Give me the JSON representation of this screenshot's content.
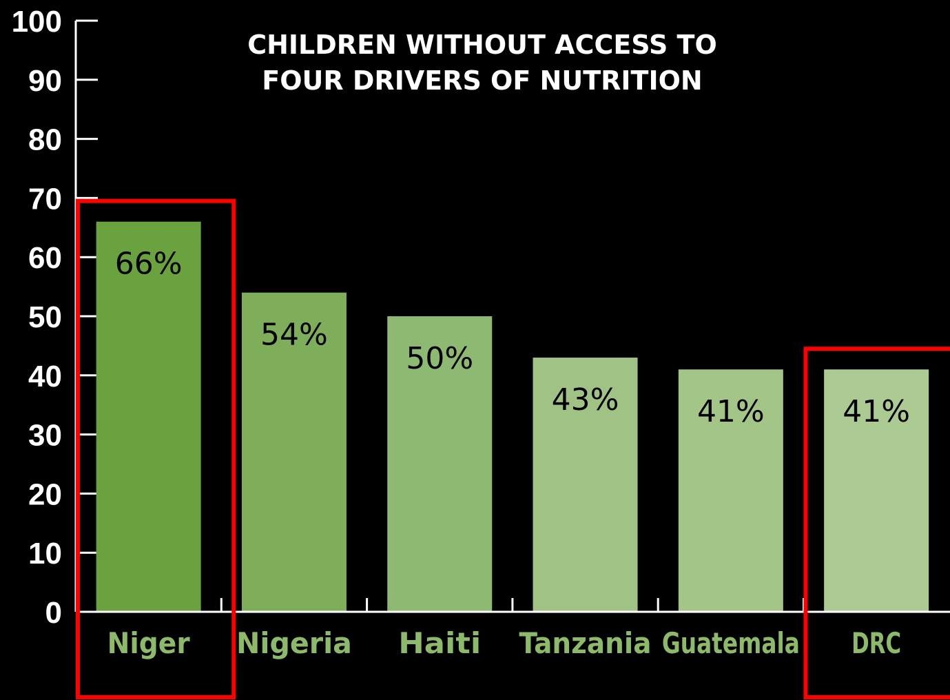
{
  "chart_data": {
    "type": "bar",
    "title_lines": [
      "CHILDREN WITHOUT ACCESS TO",
      "FOUR DRIVERS OF NUTRITION"
    ],
    "categories": [
      "Niger",
      "Nigeria",
      "Haiti",
      "Tanzania",
      "Guatemala",
      "DRC"
    ],
    "values": [
      66,
      54,
      50,
      43,
      41,
      41
    ],
    "value_labels": [
      "66%",
      "54%",
      "50%",
      "43%",
      "41%",
      "41%"
    ],
    "ylim": [
      0,
      100
    ],
    "yticks": [
      "0",
      "10",
      "20",
      "30",
      "40",
      "50",
      "60",
      "70",
      "80",
      "90",
      "100"
    ],
    "grid": false,
    "highlighted": [
      "Niger",
      "DRC"
    ],
    "bar_colors": [
      "#69a23f",
      "#7fae5b",
      "#8eb972",
      "#a0c385",
      "#a3c688",
      "#abcb93"
    ],
    "label_color": "#8dba6a",
    "highlight_color": "#ff0000",
    "background": "#000000",
    "axis_color": "#ffffff"
  }
}
